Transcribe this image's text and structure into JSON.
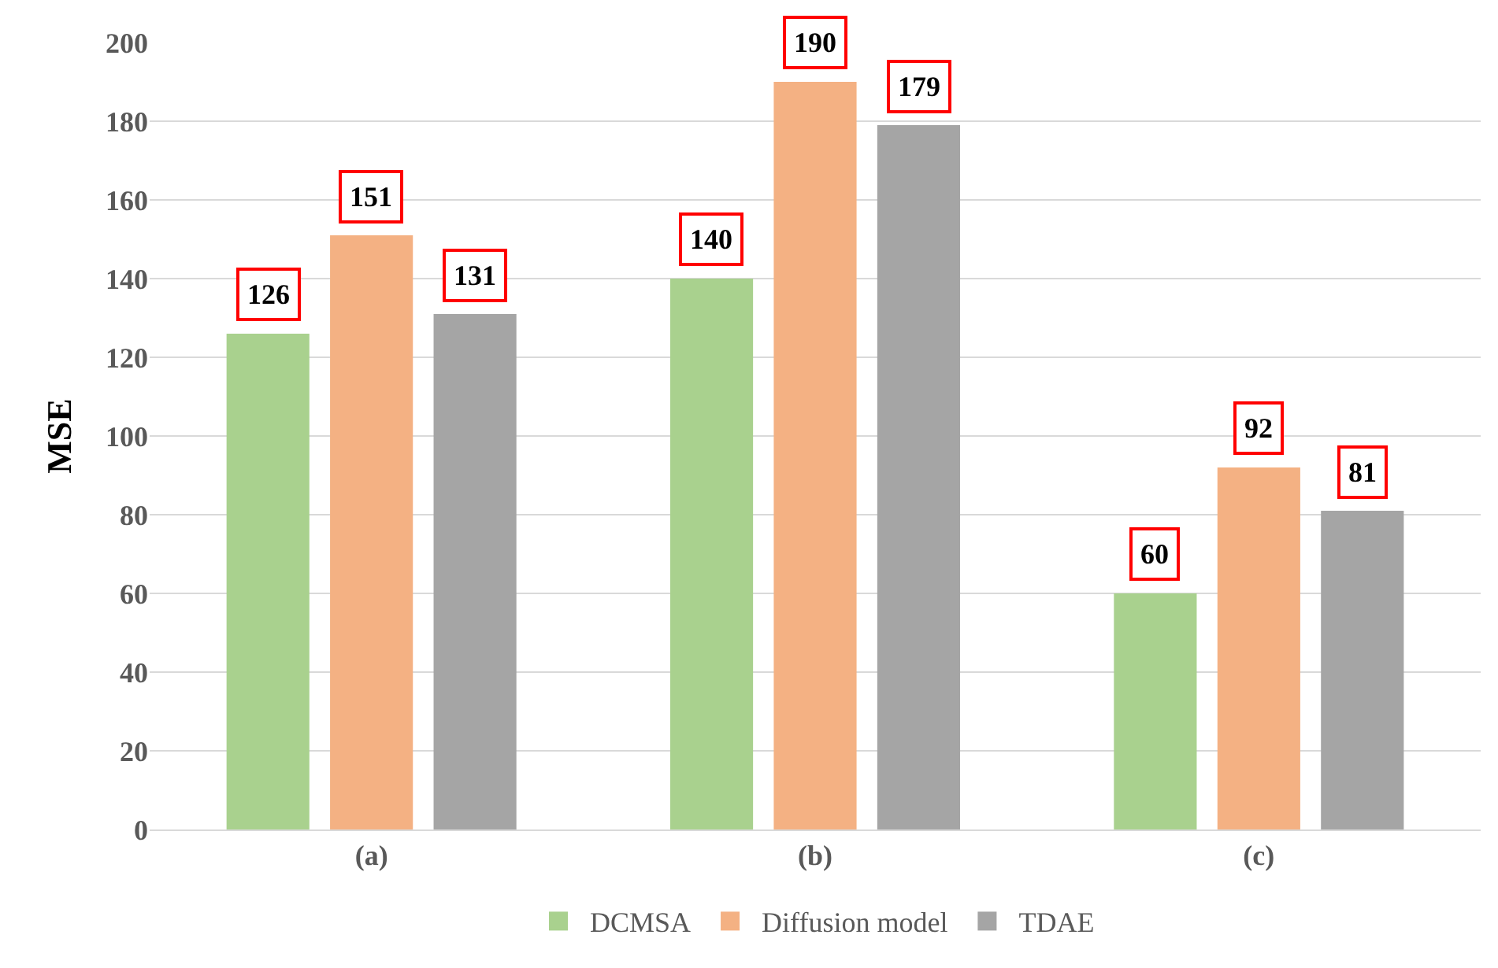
{
  "chart_data": {
    "type": "bar",
    "ylabel": "MSE",
    "categories": [
      "(a)",
      "(b)",
      "(c)"
    ],
    "series": [
      {
        "name": "DCMSA",
        "color": "#a9d18e",
        "values": [
          126,
          140,
          60
        ]
      },
      {
        "name": "Diffusion model",
        "color": "#f4b183",
        "values": [
          151,
          190,
          92
        ]
      },
      {
        "name": "TDAE",
        "color": "#a5a5a5",
        "values": [
          131,
          179,
          81
        ]
      }
    ],
    "ylim": [
      0,
      200
    ],
    "yticks": [
      0,
      20,
      40,
      60,
      80,
      100,
      120,
      140,
      160,
      180,
      200
    ],
    "grid": "y",
    "legend": "bottom",
    "data_labels": true
  }
}
